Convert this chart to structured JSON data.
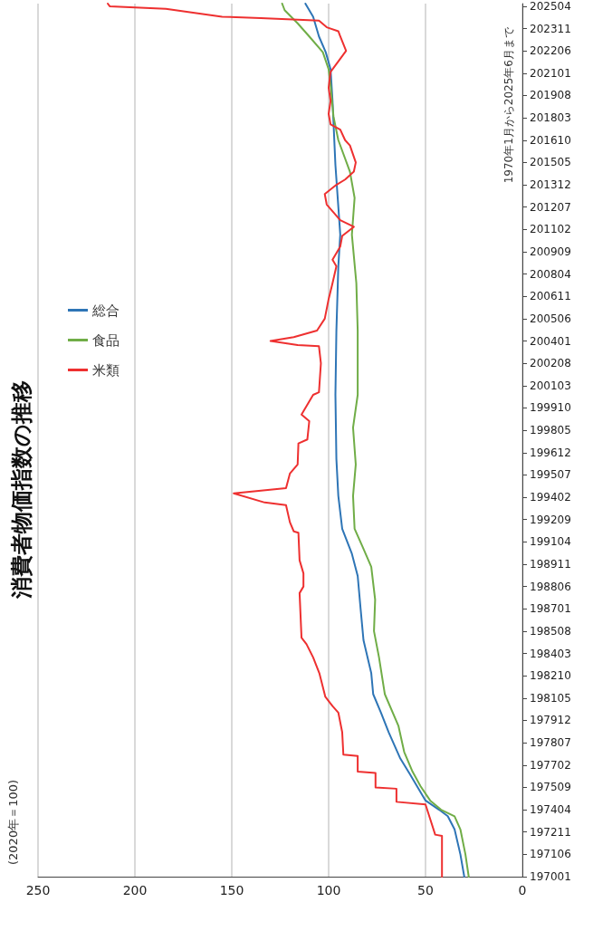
{
  "chart_data": {
    "type": "line",
    "title": "消費者物価指数の推移",
    "annotations": [
      "(2020年＝100)",
      "1970年1月から2025年6月まで"
    ],
    "orientation": "horizontal",
    "xlim": [
      250,
      0
    ],
    "xticks": [
      250,
      200,
      150,
      100,
      50,
      0
    ],
    "ylim": [
      "1970-01",
      "2025-06"
    ],
    "yticks": [
      {
        "value": "1970-01",
        "label": "197001"
      },
      {
        "value": "1971-06",
        "label": "197106"
      },
      {
        "value": "1972-11",
        "label": "197211"
      },
      {
        "value": "1974-04",
        "label": "197404"
      },
      {
        "value": "1975-09",
        "label": "197509"
      },
      {
        "value": "1977-02",
        "label": "197702"
      },
      {
        "value": "1978-07",
        "label": "197807"
      },
      {
        "value": "1979-12",
        "label": "197912"
      },
      {
        "value": "1981-05",
        "label": "198105"
      },
      {
        "value": "1982-10",
        "label": "198210"
      },
      {
        "value": "1984-03",
        "label": "198403"
      },
      {
        "value": "1985-08",
        "label": "198508"
      },
      {
        "value": "1987-01",
        "label": "198701"
      },
      {
        "value": "1988-06",
        "label": "198806"
      },
      {
        "value": "1989-11",
        "label": "198911"
      },
      {
        "value": "1991-04",
        "label": "199104"
      },
      {
        "value": "1992-09",
        "label": "199209"
      },
      {
        "value": "1994-02",
        "label": "199402"
      },
      {
        "value": "1995-07",
        "label": "199507"
      },
      {
        "value": "1996-12",
        "label": "199612"
      },
      {
        "value": "1998-05",
        "label": "199805"
      },
      {
        "value": "1999-10",
        "label": "199910"
      },
      {
        "value": "2001-03",
        "label": "200103"
      },
      {
        "value": "2002-08",
        "label": "200208"
      },
      {
        "value": "2004-01",
        "label": "200401"
      },
      {
        "value": "2005-06",
        "label": "200506"
      },
      {
        "value": "2006-11",
        "label": "200611"
      },
      {
        "value": "2008-04",
        "label": "200804"
      },
      {
        "value": "2009-09",
        "label": "200909"
      },
      {
        "value": "2011-02",
        "label": "201102"
      },
      {
        "value": "2012-07",
        "label": "201207"
      },
      {
        "value": "2013-12",
        "label": "201312"
      },
      {
        "value": "2015-05",
        "label": "201505"
      },
      {
        "value": "2016-10",
        "label": "201610"
      },
      {
        "value": "2018-03",
        "label": "201803"
      },
      {
        "value": "2019-08",
        "label": "201908"
      },
      {
        "value": "2021-01",
        "label": "202101"
      },
      {
        "value": "2022-06",
        "label": "202206"
      },
      {
        "value": "2023-11",
        "label": "202311"
      },
      {
        "value": "2025-04",
        "label": "202504"
      }
    ],
    "grid": "x",
    "legend": "left",
    "marker": "none",
    "line_style": "solid",
    "series": [
      {
        "name": "総合",
        "color": "#2e75b6",
        "x": [
          "1970-01",
          "1971-06",
          "1973-01",
          "1973-11",
          "1974-04",
          "1974-11",
          "1975-09",
          "1976-07",
          "1977-07",
          "1979-03",
          "1980-06",
          "1981-08",
          "1982-12",
          "1985-01",
          "1987-01",
          "1989-02",
          "1990-07",
          "1992-02",
          "1994-03",
          "1996-07",
          "2000-08",
          "2004-09",
          "2008-10",
          "2010-10",
          "2015-03",
          "2019-04",
          "2021-04",
          "2022-05",
          "2023-05",
          "2024-08",
          "2025-06"
        ],
        "values": [
          30,
          32,
          35,
          38.5,
          43,
          50,
          54,
          58,
          63,
          69,
          73,
          77,
          78,
          82,
          83.5,
          85,
          88,
          93,
          95,
          96,
          96.5,
          96,
          95,
          94,
          96.5,
          98,
          99,
          101.5,
          105,
          108,
          112
        ]
      },
      {
        "name": "食品",
        "color": "#70ad47",
        "x": [
          "1970-01",
          "1971-06",
          "1973-01",
          "1973-11",
          "1974-04",
          "1974-11",
          "1975-10",
          "1976-09",
          "1977-12",
          "1979-08",
          "1981-08",
          "1983-12",
          "1985-08",
          "1987-08",
          "1989-09",
          "1990-12",
          "1992-02",
          "1994-03",
          "1996-03",
          "1998-07",
          "2000-08",
          "2004-09",
          "2007-09",
          "2010-10",
          "2013-02",
          "2014-10",
          "2016-10",
          "2018-04",
          "2020-04",
          "2021-04",
          "2022-05",
          "2023-05",
          "2024-03",
          "2025-01",
          "2025-06"
        ],
        "values": [
          27.7,
          29.4,
          32,
          35,
          42,
          47.6,
          52.6,
          56.7,
          61,
          64,
          71,
          74,
          76.6,
          76,
          78,
          82.4,
          86.6,
          87.4,
          86,
          87.4,
          85,
          85,
          85.7,
          88,
          86.6,
          89,
          95,
          97.5,
          99,
          100,
          103,
          110,
          116,
          122.7,
          124
        ]
      },
      {
        "name": "米類",
        "color": "#ee3030",
        "x": [
          "1970-01",
          "1972-08",
          "1972-09",
          "1973-09",
          "1974-08",
          "1974-10",
          "1975-08",
          "1975-09",
          "1976-08",
          "1976-09",
          "1977-09",
          "1977-10",
          "1979-03",
          "1980-06",
          "1980-11",
          "1981-06",
          "1982-12",
          "1983-12",
          "1984-10",
          "1985-03",
          "1988-01",
          "1988-06",
          "1989-04",
          "1990-02",
          "1991-11",
          "1991-12",
          "1992-07",
          "1993-08",
          "1993-10",
          "1994-05",
          "1994-09",
          "1995-08",
          "1996-03",
          "1997-07",
          "1997-10",
          "1998-12",
          "1999-05",
          "1999-10",
          "2000-08",
          "2000-10",
          "2002-08",
          "2003-09",
          "2003-10",
          "2004-01",
          "2004-04",
          "2004-09",
          "2005-06",
          "2006-09",
          "2007-09",
          "2008-10",
          "2009-03",
          "2010-01",
          "2010-09",
          "2011-04",
          "2011-09",
          "2012-09",
          "2013-05",
          "2013-12",
          "2014-04",
          "2014-10",
          "2015-05",
          "2016-06",
          "2016-10",
          "2017-06",
          "2017-10",
          "2018-06",
          "2019-04",
          "2020-02",
          "2021-02",
          "2021-07",
          "2021-12",
          "2022-06",
          "2023-05",
          "2023-09",
          "2023-12",
          "2024-05",
          "2024-07",
          "2024-08",
          "2024-10",
          "2025-02",
          "2025-04",
          "2025-06"
        ],
        "values": [
          41.5,
          41.5,
          45,
          47.6,
          50,
          65,
          65,
          75.8,
          75.8,
          85,
          85,
          92.4,
          93,
          95,
          98,
          101.7,
          104.8,
          108,
          111.4,
          114,
          115,
          113,
          113,
          115,
          115.6,
          118,
          120,
          122,
          133,
          149,
          122,
          120,
          116,
          115.6,
          111,
          110,
          114,
          112,
          108,
          105,
          104,
          105,
          116,
          130,
          118,
          106,
          102,
          100,
          98,
          96,
          98,
          94,
          93,
          87,
          94,
          101,
          102,
          96,
          91.5,
          87,
          86,
          89,
          91.5,
          94,
          99,
          100,
          99,
          100,
          99,
          96.5,
          94,
          91,
          94,
          95,
          101,
          105,
          135,
          155,
          165,
          184,
          213,
          214
        ]
      }
    ]
  }
}
